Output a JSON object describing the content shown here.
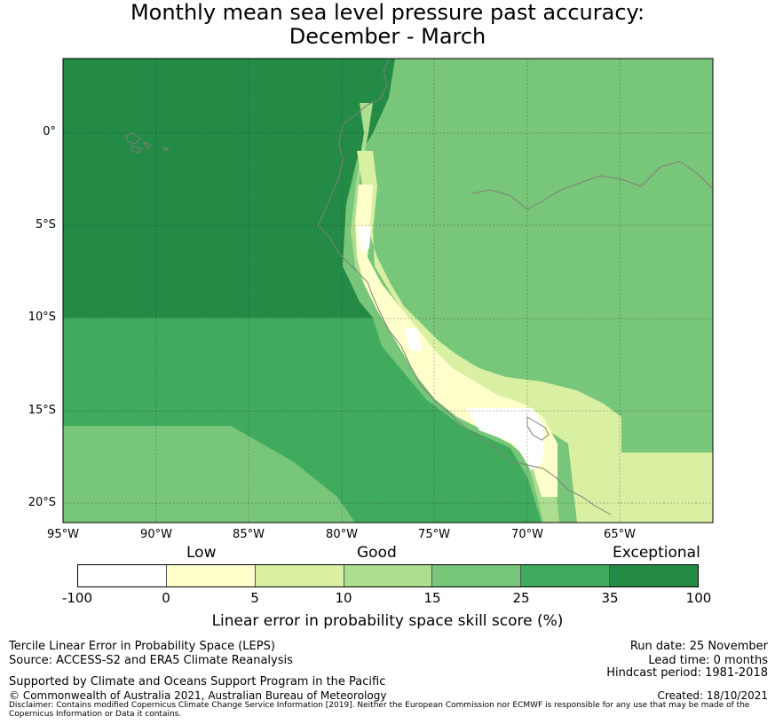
{
  "title": {
    "line1": "Monthly mean sea level pressure past accuracy:",
    "line2": "December - March"
  },
  "map": {
    "lat_labels": [
      "0°",
      "5°S",
      "10°S",
      "15°S",
      "20°S"
    ],
    "lon_labels": [
      "95°W",
      "90°W",
      "85°W",
      "80°W",
      "75°W",
      "70°W",
      "65°W"
    ],
    "colors": {
      "exceptional": "#238b45",
      "c25_35": "#41ab5d",
      "c15_25": "#78c679",
      "c10_15": "#addd8e",
      "c5_10": "#d9f0a3",
      "c0_5": "#ffffcc",
      "neg": "#ffffff",
      "coast": "#7f7f7f",
      "grid": "#222222"
    }
  },
  "legend": {
    "categories": [
      "Low",
      "Good",
      "Exceptional"
    ],
    "ticks": [
      "-100",
      "0",
      "5",
      "10",
      "15",
      "25",
      "35",
      "100"
    ],
    "colors": [
      "#ffffff",
      "#ffffcc",
      "#d9f0a3",
      "#addd8e",
      "#78c679",
      "#41ab5d",
      "#238b45"
    ],
    "title": "Linear error in probability space skill score (%)"
  },
  "footer": {
    "left1": "Tercile Linear Error in Probability Space (LEPS)",
    "left2": "Source: ACCESS-S2 and ERA5 Climate Reanalysis",
    "support": "Supported by Climate and Oceans Support Program in the Pacific",
    "copyright": "© Commonwealth of Australia 2021, Australian Bureau of Meteorology",
    "run_date": "Run date: 25 November",
    "lead_time": "Lead time: 0 months",
    "hindcast": "Hindcast period: 1981-2018",
    "created": "Created: 18/10/2021",
    "disclaimer": "Disclaimer: Contains modified Copernicus Climate Change Service Information [2019]. Neither the European Commission nor ECMWF is responsible for any use that may be made of the Copernicus Information or Data it contains."
  }
}
